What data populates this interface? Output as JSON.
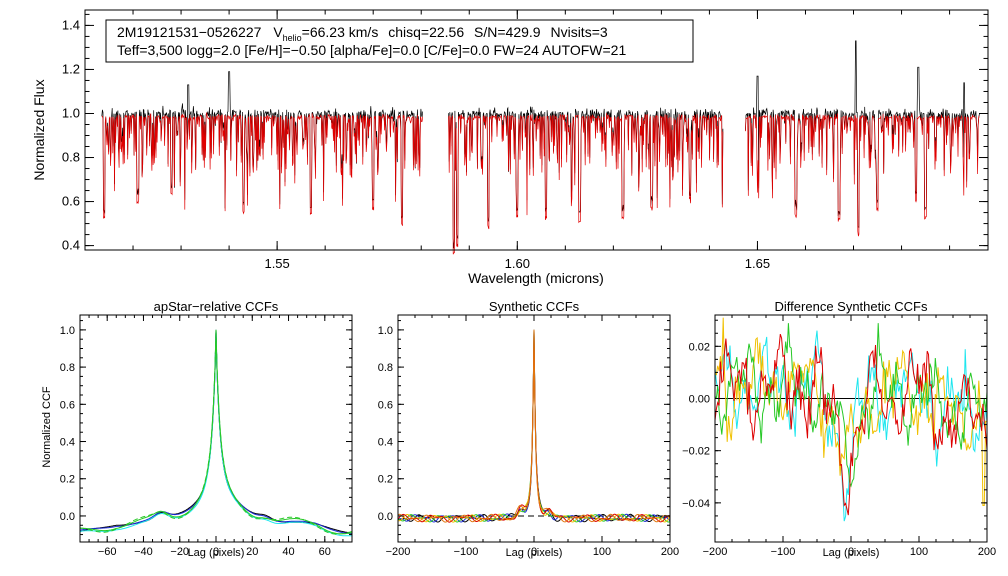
{
  "colors": {
    "axis": "#000000",
    "observed": "#000000",
    "model": "#e00000",
    "ccf_black": "#000000",
    "ccf_blue": "#1a2bd6",
    "ccf_cyan": "#1ee6ee",
    "ccf_yellow": "#f0c000",
    "ccf_green": "#26c826",
    "ccf_red": "#dd0000",
    "ccf_orange": "#e07810"
  },
  "info_box": {
    "star_id": "2M19121531−0526227",
    "vhelio_label": "V",
    "vhelio_sub": "helio",
    "vhelio_value": "=66.23 km/s",
    "chisq": "chisq=22.56",
    "snr": "S/N=429.9",
    "nvisits": "Nvisits=3",
    "line2": "Teff=3,500 logg=2.0 [Fe/H]=−0.50 [alpha/Fe]=0.0 [C/Fe]=0.0 FW=24 AUTOFW=21"
  },
  "chart_data": [
    {
      "id": "spectrum",
      "type": "line",
      "title": "",
      "xlabel": "Wavelength (microns)",
      "ylabel": "Normalized Flux",
      "xlim": [
        1.51,
        1.698
      ],
      "ylim": [
        0.38,
        1.47
      ],
      "xticks": [
        1.55,
        1.6,
        1.65
      ],
      "xtick_labels": [
        "1.55",
        "1.60",
        "1.65"
      ],
      "yticks": [
        0.4,
        0.6,
        0.8,
        1.0,
        1.2,
        1.4
      ],
      "ytick_labels": [
        "0.4",
        "0.6",
        "0.8",
        "1.0",
        "1.2",
        "1.4"
      ],
      "segments": [
        [
          1.5135,
          1.5803
        ],
        [
          1.5857,
          1.6428
        ],
        [
          1.6475,
          1.6962
        ]
      ],
      "series": [
        {
          "name": "Observed (black)",
          "continuum": 1.0
        },
        {
          "name": "Synthetic (red)",
          "continuum": 0.985
        }
      ],
      "strong_features": [
        {
          "x": 1.514,
          "y": 0.56
        },
        {
          "x": 1.521,
          "y": 0.63
        },
        {
          "x": 1.528,
          "y": 0.67
        },
        {
          "x": 1.543,
          "y": 0.59
        },
        {
          "x": 1.557,
          "y": 0.58
        },
        {
          "x": 1.57,
          "y": 0.6
        },
        {
          "x": 1.576,
          "y": 0.54
        },
        {
          "x": 1.5868,
          "y": 0.41
        },
        {
          "x": 1.5875,
          "y": 0.44
        },
        {
          "x": 1.594,
          "y": 0.52
        },
        {
          "x": 1.6,
          "y": 0.57
        },
        {
          "x": 1.606,
          "y": 0.56
        },
        {
          "x": 1.613,
          "y": 0.55
        },
        {
          "x": 1.622,
          "y": 0.56
        },
        {
          "x": 1.628,
          "y": 0.61
        },
        {
          "x": 1.636,
          "y": 0.64
        },
        {
          "x": 1.658,
          "y": 0.57
        },
        {
          "x": 1.667,
          "y": 0.55
        },
        {
          "x": 1.671,
          "y": 0.49
        },
        {
          "x": 1.675,
          "y": 0.6
        },
        {
          "x": 1.683,
          "y": 0.64
        },
        {
          "x": 1.685,
          "y": 0.56
        }
      ],
      "emission_spikes": [
        {
          "x": 1.5315,
          "y": 1.13
        },
        {
          "x": 1.54,
          "y": 1.19
        },
        {
          "x": 1.65,
          "y": 1.17
        },
        {
          "x": 1.6705,
          "y": 1.33
        },
        {
          "x": 1.6835,
          "y": 1.21
        },
        {
          "x": 1.693,
          "y": 1.14
        }
      ]
    },
    {
      "id": "apstar-ccf",
      "type": "line",
      "title": "apStar−relative CCFs",
      "xlabel": "Lag (pixels)",
      "ylabel": "Normalized CCF",
      "xlim": [
        -75,
        75
      ],
      "ylim": [
        -0.14,
        1.08
      ],
      "xticks": [
        -60,
        -40,
        -20,
        0,
        20,
        40,
        60
      ],
      "xtick_labels": [
        "−60",
        "−40",
        "−20",
        "0",
        "20",
        "40",
        "60"
      ],
      "yticks": [
        0.0,
        0.2,
        0.4,
        0.6,
        0.8,
        1.0
      ],
      "ytick_labels": [
        "0.0",
        "0.2",
        "0.4",
        "0.6",
        "0.8",
        "1.0"
      ],
      "peak": {
        "x": 0,
        "y": 1.0
      },
      "series": [
        {
          "name": "black",
          "color_key": "ccf_black"
        },
        {
          "name": "blue",
          "color_key": "ccf_blue"
        },
        {
          "name": "cyan",
          "color_key": "ccf_cyan"
        },
        {
          "name": "green",
          "color_key": "ccf_green"
        },
        {
          "name": "green dashed",
          "color_key": "ccf_green",
          "dashed": true
        }
      ]
    },
    {
      "id": "synthetic-ccf",
      "type": "line",
      "title": "Synthetic CCFs",
      "xlabel": "Lag (pixels)",
      "ylabel": "",
      "xlim": [
        -200,
        200
      ],
      "ylim": [
        -0.14,
        1.08
      ],
      "xticks": [
        -200,
        -100,
        0,
        100,
        200
      ],
      "xtick_labels": [
        "−200",
        "−100",
        "0",
        "100",
        "200"
      ],
      "yticks": [
        0.0,
        0.2,
        0.4,
        0.6,
        0.8,
        1.0
      ],
      "ytick_labels": [
        "0.0",
        "0.2",
        "0.4",
        "0.6",
        "0.8",
        "1.0"
      ],
      "peak": {
        "x": 0,
        "y": 1.0
      },
      "zero_line": "dashed",
      "series": [
        {
          "name": "black",
          "color_key": "ccf_black"
        },
        {
          "name": "blue",
          "color_key": "ccf_blue"
        },
        {
          "name": "green",
          "color_key": "ccf_green"
        },
        {
          "name": "yellow",
          "color_key": "ccf_yellow"
        },
        {
          "name": "red",
          "color_key": "ccf_red"
        },
        {
          "name": "orange",
          "color_key": "ccf_orange"
        }
      ]
    },
    {
      "id": "difference-ccf",
      "type": "line",
      "title": "Difference Synthetic CCFs",
      "xlabel": "Lag (pixels)",
      "ylabel": "",
      "xlim": [
        -200,
        200
      ],
      "ylim": [
        -0.055,
        0.032
      ],
      "xticks": [
        -200,
        -100,
        0,
        100,
        200
      ],
      "xtick_labels": [
        "−200",
        "−100",
        "0",
        "100",
        "200"
      ],
      "yticks": [
        0.02,
        0.0,
        -0.02,
        -0.04
      ],
      "ytick_labels": [
        "0.02",
        "0.00",
        "−0.02",
        "−0.04"
      ],
      "zero_line": "solid",
      "series": [
        {
          "name": "cyan",
          "color_key": "ccf_cyan"
        },
        {
          "name": "yellow",
          "color_key": "ccf_yellow"
        },
        {
          "name": "green",
          "color_key": "ccf_green"
        },
        {
          "name": "red",
          "color_key": "ccf_red"
        }
      ],
      "notable_points": [
        {
          "series": "cyan",
          "x": -10,
          "y": -0.047
        },
        {
          "series": "yellow",
          "x": -188,
          "y": 0.031
        },
        {
          "series": "yellow",
          "x": 195,
          "y": -0.041
        }
      ]
    }
  ]
}
